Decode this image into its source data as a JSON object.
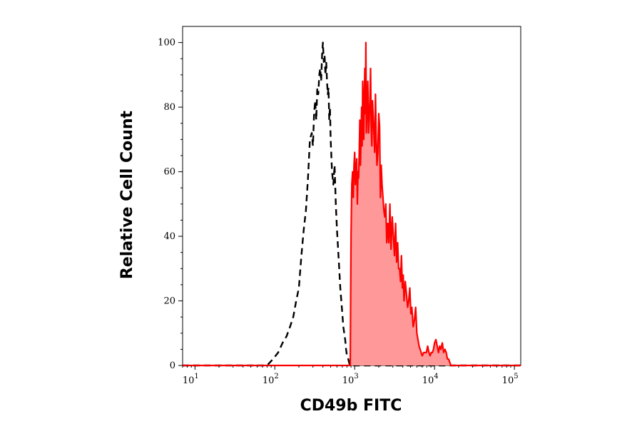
{
  "chart_data": {
    "type": "area",
    "xlabel": "CD49b FITC",
    "ylabel": "Relative Cell Count",
    "x_scale": "log",
    "xlim": [
      7,
      120000
    ],
    "ylim": [
      0,
      105
    ],
    "grid": false,
    "legend": "none",
    "x_ticks": [
      {
        "base": "10",
        "exp": "1",
        "value": 10
      },
      {
        "base": "10",
        "exp": "2",
        "value": 100
      },
      {
        "base": "10",
        "exp": "3",
        "value": 1000
      },
      {
        "base": "10",
        "exp": "4",
        "value": 10000
      },
      {
        "base": "10",
        "exp": "5",
        "value": 100000
      }
    ],
    "y_ticks": [
      {
        "label": "0",
        "value": 0
      },
      {
        "label": "20",
        "value": 20
      },
      {
        "label": "40",
        "value": 40
      },
      {
        "label": "60",
        "value": 60
      },
      {
        "label": "80",
        "value": 80
      },
      {
        "label": "100",
        "value": 100
      }
    ],
    "series": [
      {
        "style": "dashed",
        "color": "#000000",
        "x": [
          7,
          80,
          95,
          110,
          125,
          140,
          155,
          170,
          185,
          200,
          215,
          230,
          245,
          260,
          275,
          290,
          300,
          310,
          320,
          330,
          340,
          350,
          360,
          370,
          380,
          390,
          400,
          410,
          420,
          430,
          440,
          450,
          460,
          470,
          480,
          490,
          500,
          520,
          540,
          560,
          580,
          600,
          620,
          640,
          660,
          680,
          700,
          720,
          740,
          760,
          780,
          800,
          830,
          870,
          120000
        ],
        "y": [
          0,
          0,
          2,
          4,
          7,
          9,
          12,
          15,
          20,
          24,
          34,
          42,
          48,
          58,
          70,
          72,
          68,
          78,
          82,
          76,
          86,
          84,
          90,
          92,
          88,
          96,
          100,
          94,
          96,
          90,
          94,
          88,
          84,
          86,
          76,
          80,
          70,
          60,
          56,
          62,
          50,
          42,
          36,
          30,
          24,
          20,
          16,
          12,
          10,
          8,
          5,
          3,
          2,
          0,
          0
        ]
      },
      {
        "style": "filled",
        "color": "#ff0000",
        "fill": "#ff9999",
        "x": [
          7,
          880,
          900,
          920,
          940,
          960,
          980,
          1000,
          1020,
          1040,
          1060,
          1080,
          1100,
          1120,
          1140,
          1160,
          1180,
          1200,
          1220,
          1240,
          1260,
          1280,
          1300,
          1320,
          1340,
          1360,
          1380,
          1400,
          1430,
          1460,
          1490,
          1520,
          1550,
          1580,
          1610,
          1640,
          1670,
          1700,
          1740,
          1780,
          1820,
          1860,
          1900,
          1950,
          2000,
          2050,
          2100,
          2150,
          2200,
          2260,
          2320,
          2380,
          2450,
          2520,
          2600,
          2680,
          2760,
          2850,
          2950,
          3050,
          3150,
          3250,
          3350,
          3450,
          3550,
          3650,
          3750,
          3850,
          3950,
          4050,
          4150,
          4300,
          4450,
          4600,
          4750,
          4900,
          5050,
          5200,
          5400,
          5600,
          5800,
          6000,
          6200,
          6400,
          6600,
          6800,
          7000,
          7300,
          7600,
          7900,
          8200,
          8500,
          8800,
          9100,
          9400,
          9700,
          10000,
          10400,
          10800,
          11200,
          11600,
          12000,
          12500,
          13000,
          13500,
          14000,
          14500,
          15000,
          15500,
          16000,
          16500,
          17000,
          120000
        ],
        "y": [
          0,
          0,
          40,
          56,
          60,
          52,
          62,
          66,
          56,
          60,
          64,
          50,
          60,
          58,
          66,
          76,
          62,
          70,
          80,
          68,
          88,
          76,
          70,
          84,
          92,
          78,
          100,
          72,
          80,
          88,
          72,
          76,
          82,
          92,
          74,
          68,
          82,
          78,
          72,
          66,
          84,
          70,
          62,
          66,
          78,
          74,
          52,
          62,
          56,
          52,
          48,
          46,
          50,
          38,
          44,
          38,
          50,
          36,
          46,
          40,
          34,
          44,
          32,
          38,
          30,
          30,
          26,
          34,
          24,
          28,
          20,
          26,
          22,
          18,
          20,
          24,
          16,
          18,
          12,
          14,
          18,
          10,
          8,
          6,
          5,
          4,
          3,
          4,
          4,
          4,
          6,
          4,
          3,
          4,
          4,
          5,
          7,
          8,
          6,
          4,
          6,
          5,
          7,
          4,
          5,
          4,
          2,
          2,
          1,
          0,
          0,
          0,
          0
        ]
      }
    ]
  }
}
